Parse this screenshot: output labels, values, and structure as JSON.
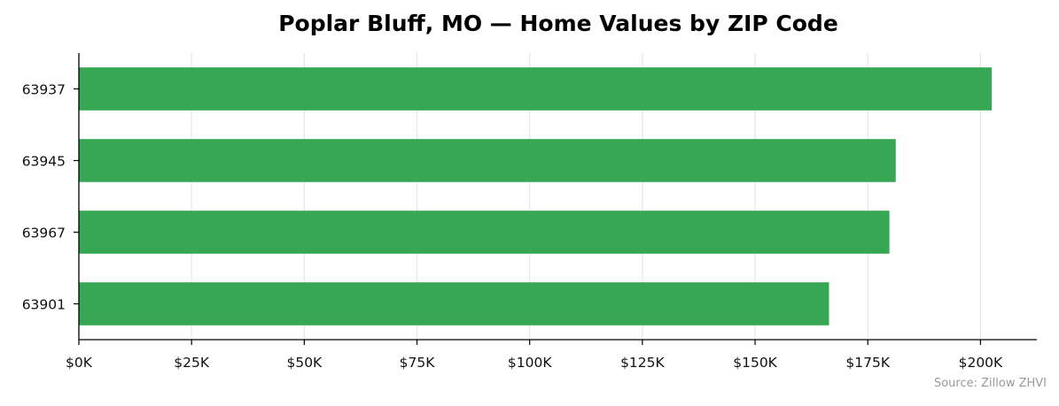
{
  "chart_data": {
    "type": "bar",
    "orientation": "horizontal",
    "title": "Poplar Bluff, MO — Home Values by ZIP Code",
    "xlabel": "",
    "ylabel": "",
    "categories": [
      "63937",
      "63945",
      "63967",
      "63901"
    ],
    "values": [
      202500,
      181200,
      179800,
      166400
    ],
    "xlim": [
      0,
      212500
    ],
    "x_ticks": [
      0,
      25000,
      50000,
      75000,
      100000,
      125000,
      150000,
      175000,
      200000
    ],
    "x_tick_labels": [
      "$0K",
      "$25K",
      "$50K",
      "$75K",
      "$100K",
      "$125K",
      "$150K",
      "$175K",
      "$200K"
    ],
    "grid": "vertical",
    "legend": "none",
    "bar_color": "#36a853",
    "source": "Source: Zillow ZHVI"
  }
}
